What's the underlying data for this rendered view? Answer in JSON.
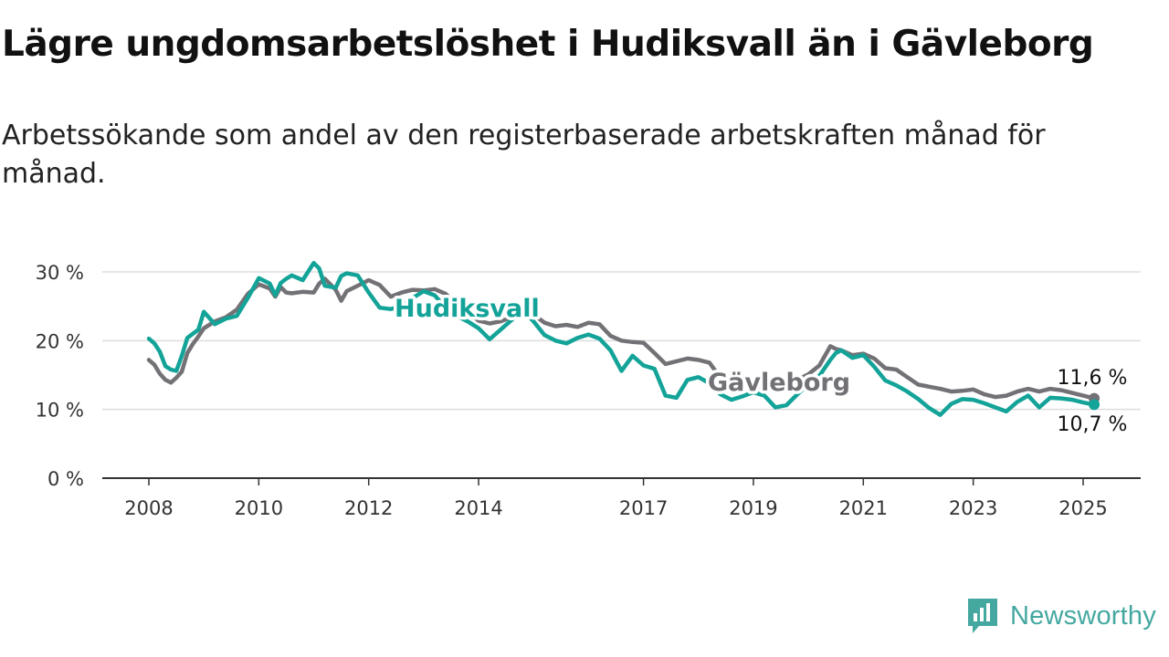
{
  "chart_data": {
    "type": "line",
    "title": "Lägre ungdomsarbetslöshet i Hudiksvall än i Gävleborg",
    "subtitle": "Arbetssökande som andel av den registerbaserade arbetskraften månad för månad.",
    "ylim": [
      0,
      31
    ],
    "yticks": [
      0,
      10,
      20,
      30
    ],
    "ytick_labels": [
      "0 %",
      "10 %",
      "20 %",
      "30 %"
    ],
    "xlim": [
      2008,
      2025.75
    ],
    "xticks": [
      2008,
      2010,
      2012,
      2014,
      2017,
      2019,
      2021,
      2023,
      2025
    ],
    "xtick_labels": [
      "2008",
      "2010",
      "2012",
      "2014",
      "2017",
      "2019",
      "2021",
      "2023",
      "2025"
    ],
    "grid": true,
    "colors": {
      "Gävleborg": "#737175",
      "Hudiksvall": "#13a398"
    },
    "series": [
      {
        "name": "Gävleborg",
        "end_label": "11,6 %",
        "x": [
          2008.0,
          2008.1,
          2008.2,
          2008.3,
          2008.4,
          2008.5,
          2008.6,
          2008.7,
          2008.8,
          2008.9,
          2009.0,
          2009.2,
          2009.4,
          2009.6,
          2009.8,
          2010.0,
          2010.2,
          2010.3,
          2010.4,
          2010.5,
          2010.6,
          2010.8,
          2011.0,
          2011.1,
          2011.2,
          2011.4,
          2011.5,
          2011.6,
          2011.8,
          2012.0,
          2012.2,
          2012.4,
          2012.6,
          2012.8,
          2013.0,
          2013.2,
          2013.4,
          2013.6,
          2013.8,
          2014.0,
          2014.2,
          2014.4,
          2014.6,
          2014.8,
          2015.0,
          2015.2,
          2015.4,
          2015.6,
          2015.8,
          2016.0,
          2016.2,
          2016.4,
          2016.6,
          2016.8,
          2017.0,
          2017.2,
          2017.4,
          2017.6,
          2017.8,
          2018.0,
          2018.2,
          2018.4,
          2018.6,
          2018.8,
          2019.0,
          2019.2,
          2019.4,
          2019.6,
          2019.8,
          2020.0,
          2020.2,
          2020.4,
          2020.5,
          2020.6,
          2020.8,
          2021.0,
          2021.2,
          2021.4,
          2021.6,
          2021.8,
          2022.0,
          2022.2,
          2022.4,
          2022.6,
          2022.8,
          2023.0,
          2023.2,
          2023.4,
          2023.6,
          2023.8,
          2024.0,
          2024.2,
          2024.4,
          2024.6,
          2024.8,
          2025.0,
          2025.2
        ],
        "y": [
          17.2,
          16.5,
          15.2,
          14.3,
          13.9,
          14.6,
          15.5,
          18.2,
          19.5,
          20.6,
          21.8,
          22.8,
          23.4,
          24.5,
          26.8,
          28.2,
          27.6,
          26.4,
          27.8,
          27.0,
          26.9,
          27.1,
          27.0,
          28.3,
          29.0,
          27.4,
          25.8,
          27.2,
          28.0,
          28.8,
          28.1,
          26.4,
          27.0,
          27.4,
          27.3,
          27.5,
          26.8,
          25.3,
          24.2,
          22.9,
          22.5,
          22.8,
          23.4,
          23.9,
          23.8,
          22.6,
          22.1,
          22.3,
          22.0,
          22.6,
          22.4,
          20.7,
          20.0,
          19.8,
          19.7,
          18.2,
          16.6,
          17.0,
          17.4,
          17.2,
          16.8,
          14.6,
          13.8,
          13.5,
          13.4,
          13.2,
          13.6,
          13.4,
          14.3,
          15.1,
          16.4,
          19.2,
          18.8,
          18.6,
          17.9,
          18.1,
          17.4,
          16.0,
          15.8,
          14.7,
          13.6,
          13.3,
          13.0,
          12.6,
          12.7,
          12.9,
          12.2,
          11.8,
          12.0,
          12.6,
          13.0,
          12.6,
          13.0,
          12.8,
          12.4,
          12.0,
          11.6
        ]
      },
      {
        "name": "Hudiksvall",
        "end_label": "10,7 %",
        "x": [
          2008.0,
          2008.1,
          2008.2,
          2008.3,
          2008.4,
          2008.5,
          2008.6,
          2008.7,
          2008.8,
          2008.9,
          2009.0,
          2009.2,
          2009.4,
          2009.6,
          2009.8,
          2010.0,
          2010.2,
          2010.3,
          2010.4,
          2010.5,
          2010.6,
          2010.8,
          2011.0,
          2011.1,
          2011.2,
          2011.4,
          2011.5,
          2011.6,
          2011.8,
          2012.0,
          2012.2,
          2012.4,
          2012.6,
          2012.8,
          2013.0,
          2013.2,
          2013.4,
          2013.6,
          2013.8,
          2014.0,
          2014.2,
          2014.4,
          2014.6,
          2014.8,
          2015.0,
          2015.2,
          2015.4,
          2015.6,
          2015.8,
          2016.0,
          2016.2,
          2016.4,
          2016.6,
          2016.8,
          2017.0,
          2017.2,
          2017.4,
          2017.6,
          2017.8,
          2018.0,
          2018.2,
          2018.4,
          2018.6,
          2018.8,
          2019.0,
          2019.2,
          2019.4,
          2019.6,
          2019.8,
          2020.0,
          2020.2,
          2020.4,
          2020.5,
          2020.6,
          2020.8,
          2021.0,
          2021.2,
          2021.4,
          2021.6,
          2021.8,
          2022.0,
          2022.2,
          2022.4,
          2022.6,
          2022.8,
          2023.0,
          2023.2,
          2023.4,
          2023.6,
          2023.8,
          2024.0,
          2024.2,
          2024.4,
          2024.6,
          2024.8,
          2025.0,
          2025.2
        ],
        "y": [
          20.3,
          19.6,
          18.4,
          16.3,
          15.8,
          15.6,
          17.8,
          20.4,
          21.0,
          21.6,
          24.2,
          22.4,
          23.2,
          23.6,
          26.2,
          29.1,
          28.3,
          26.6,
          28.4,
          29.0,
          29.5,
          28.8,
          31.3,
          30.5,
          28.0,
          27.7,
          29.4,
          29.8,
          29.5,
          27.0,
          24.8,
          24.6,
          25.0,
          26.2,
          27.2,
          26.6,
          24.8,
          23.6,
          22.8,
          21.8,
          20.2,
          21.6,
          23.0,
          24.4,
          22.8,
          20.8,
          20.0,
          19.6,
          20.4,
          20.9,
          20.3,
          18.6,
          15.6,
          17.8,
          16.4,
          15.9,
          12.0,
          11.7,
          14.3,
          14.7,
          13.8,
          12.2,
          11.4,
          11.9,
          12.5,
          12.0,
          10.3,
          10.6,
          12.2,
          13.6,
          14.9,
          17.2,
          18.2,
          18.6,
          17.5,
          17.9,
          16.2,
          14.2,
          13.5,
          12.6,
          11.5,
          10.2,
          9.2,
          10.8,
          11.5,
          11.4,
          10.9,
          10.3,
          9.7,
          11.1,
          12.0,
          10.3,
          11.7,
          11.6,
          11.4,
          11.0,
          10.7
        ]
      }
    ]
  },
  "brand": {
    "name": "Newsworthy"
  }
}
